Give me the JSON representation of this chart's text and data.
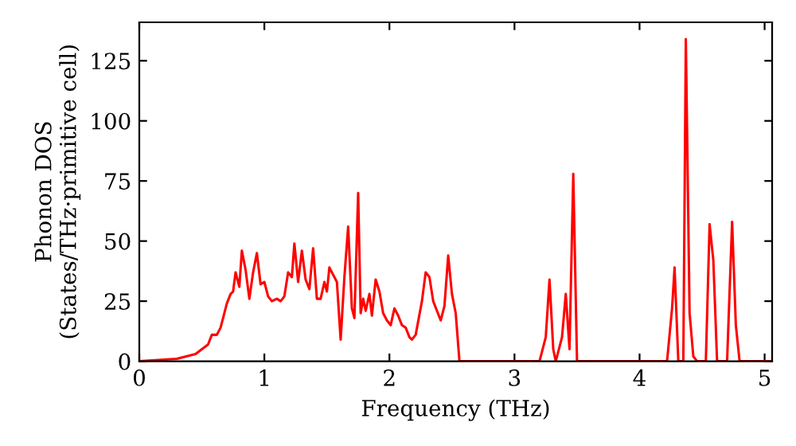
{
  "chart_data": {
    "type": "line",
    "xlabel": "Frequency (THz)",
    "ylabel": "Phonon DOS\n(States/THz·primitive cell)",
    "xlim": [
      0,
      5.06
    ],
    "ylim": [
      0,
      141
    ],
    "xticks": [
      0,
      1,
      2,
      3,
      4,
      5
    ],
    "yticks": [
      0,
      25,
      50,
      75,
      100,
      125
    ],
    "grid": false,
    "legend": false,
    "series": [
      {
        "color": "#ff0000",
        "x": [
          0,
          0.3,
          0.45,
          0.5,
          0.55,
          0.58,
          0.62,
          0.65,
          0.7,
          0.73,
          0.75,
          0.77,
          0.8,
          0.82,
          0.85,
          0.88,
          0.91,
          0.94,
          0.97,
          1.0,
          1.03,
          1.06,
          1.1,
          1.13,
          1.16,
          1.19,
          1.22,
          1.24,
          1.27,
          1.3,
          1.33,
          1.36,
          1.39,
          1.42,
          1.45,
          1.48,
          1.5,
          1.52,
          1.55,
          1.58,
          1.61,
          1.64,
          1.67,
          1.7,
          1.72,
          1.75,
          1.77,
          1.79,
          1.81,
          1.84,
          1.86,
          1.89,
          1.92,
          1.95,
          1.98,
          2.01,
          2.04,
          2.07,
          2.1,
          2.13,
          2.16,
          2.18,
          2.21,
          2.26,
          2.29,
          2.32,
          2.35,
          2.38,
          2.41,
          2.44,
          2.47,
          2.5,
          2.53,
          2.56,
          3.2,
          3.25,
          3.28,
          3.31,
          3.33,
          3.38,
          3.41,
          3.44,
          3.47,
          3.5,
          4.22,
          4.26,
          4.28,
          4.31,
          4.35,
          4.37,
          4.4,
          4.43,
          4.46,
          4.53,
          4.56,
          4.59,
          4.62,
          4.7,
          4.74,
          4.77,
          4.8,
          5.06
        ],
        "values": [
          0,
          1,
          3,
          5,
          7,
          11,
          11,
          14,
          24,
          28,
          29,
          37,
          31,
          46,
          38,
          26,
          37,
          45,
          32,
          33,
          27,
          25,
          26,
          25,
          27,
          37,
          35,
          49,
          33,
          46,
          34,
          30,
          47,
          26,
          26,
          33,
          29,
          39,
          36,
          33,
          9,
          35,
          56,
          22,
          18,
          70,
          20,
          26,
          21,
          28,
          19,
          34,
          29,
          20,
          17,
          15,
          22,
          19,
          15,
          14,
          10,
          9,
          11,
          25,
          37,
          35,
          25,
          21,
          17,
          23,
          44,
          28,
          20,
          0,
          0,
          10,
          34,
          5,
          0,
          10,
          28,
          5,
          78,
          0,
          0,
          22,
          39,
          0,
          0,
          134,
          20,
          2,
          0,
          0,
          57,
          42,
          0,
          0,
          58,
          15,
          0,
          0
        ]
      }
    ]
  }
}
